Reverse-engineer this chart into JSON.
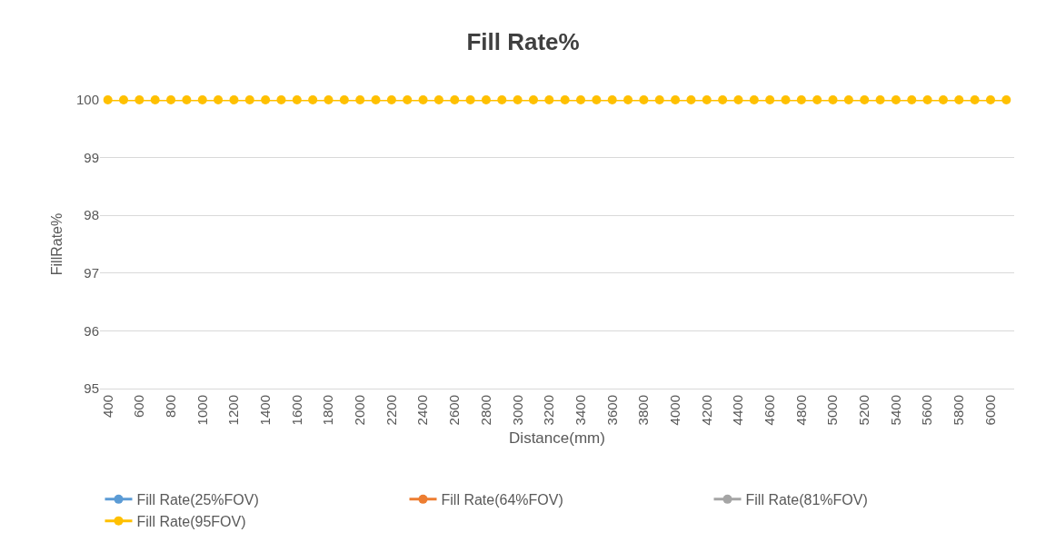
{
  "chart_data": {
    "type": "line",
    "title": "Fill Rate%",
    "xlabel": "Distance(mm)",
    "ylabel": "FillRate%",
    "categories": [
      "400",
      null,
      "600",
      null,
      "800",
      null,
      "1000",
      null,
      "1200",
      null,
      "1400",
      null,
      "1600",
      null,
      "1800",
      null,
      "2000",
      null,
      "2200",
      null,
      "2400",
      null,
      "2600",
      null,
      "2800",
      null,
      "3000",
      null,
      "3200",
      null,
      "3400",
      null,
      "3600",
      null,
      "3800",
      null,
      "4000",
      null,
      "4200",
      null,
      "4400",
      null,
      "4600",
      null,
      "4800",
      null,
      "5000",
      null,
      "5200",
      null,
      "5400",
      null,
      "5600",
      null,
      "5800",
      null,
      "6000",
      null
    ],
    "series": [
      {
        "name": "Fill Rate(25%FOV)",
        "color": "#5b9bd5",
        "values": [
          null,
          null,
          null,
          null,
          null,
          null,
          null,
          null,
          null,
          null,
          null,
          null,
          null,
          null,
          null,
          null,
          null,
          null,
          null,
          null,
          null,
          null,
          null,
          null,
          null,
          null,
          null,
          null,
          null,
          null,
          null,
          null,
          null,
          null,
          null,
          null,
          null,
          null,
          null,
          null,
          null,
          null,
          null,
          null,
          null,
          null,
          null,
          null,
          null,
          null,
          null,
          null,
          null,
          null,
          null,
          null,
          null,
          null
        ]
      },
      {
        "name": "Fill Rate(64%FOV)",
        "color": "#ed7d31",
        "values": [
          null,
          null,
          null,
          null,
          null,
          null,
          null,
          null,
          null,
          null,
          null,
          null,
          null,
          null,
          null,
          null,
          null,
          null,
          null,
          null,
          null,
          null,
          null,
          null,
          null,
          null,
          null,
          null,
          null,
          null,
          null,
          null,
          null,
          null,
          null,
          null,
          null,
          null,
          null,
          null,
          null,
          null,
          null,
          null,
          null,
          null,
          null,
          null,
          null,
          null,
          null,
          null,
          null,
          null,
          null,
          null,
          null,
          null
        ]
      },
      {
        "name": "Fill Rate(81%FOV)",
        "color": "#a5a5a5",
        "values": [
          null,
          null,
          null,
          null,
          null,
          null,
          null,
          null,
          null,
          null,
          null,
          null,
          null,
          null,
          null,
          null,
          null,
          null,
          null,
          null,
          null,
          null,
          null,
          null,
          null,
          null,
          null,
          null,
          null,
          null,
          null,
          null,
          null,
          null,
          null,
          null,
          null,
          null,
          null,
          null,
          null,
          null,
          null,
          null,
          null,
          null,
          null,
          null,
          null,
          null,
          null,
          null,
          null,
          null,
          null,
          null,
          null,
          null
        ]
      },
      {
        "name": "Fill Rate(95FOV)",
        "color": "#ffc000",
        "values": [
          100,
          100,
          100,
          100,
          100,
          100,
          100,
          100,
          100,
          100,
          100,
          100,
          100,
          100,
          100,
          100,
          100,
          100,
          100,
          100,
          100,
          100,
          100,
          100,
          100,
          100,
          100,
          100,
          100,
          100,
          100,
          100,
          100,
          100,
          100,
          100,
          100,
          100,
          100,
          100,
          100,
          100,
          100,
          100,
          100,
          100,
          100,
          100,
          100,
          100,
          100,
          100,
          100,
          100,
          100,
          100,
          100,
          100
        ]
      }
    ],
    "ylim": [
      95,
      100
    ],
    "yticks": [
      95,
      96,
      97,
      98,
      99,
      100
    ],
    "grid": "y",
    "legend": "bottom",
    "marker": "circle",
    "line_style": "solid"
  }
}
